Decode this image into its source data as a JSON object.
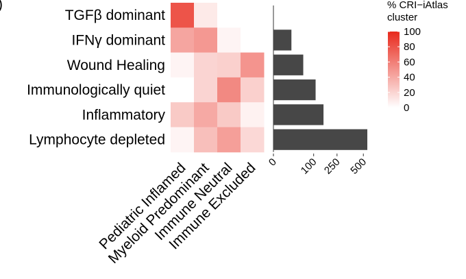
{
  "chart_data": [
    {
      "type": "heatmap",
      "panel_label": ")",
      "rows": [
        "TGFβ dominant",
        "IFNγ dominant",
        "Wound Healing",
        "Immunologically quiet",
        "Inflammatory",
        "Lymphocyte depleted"
      ],
      "columns": [
        "Pediatric Inflamed",
        "Myeloid Predominant",
        "Immune Neutral",
        "Immune Excluded"
      ],
      "values": [
        [
          80,
          10,
          0,
          0
        ],
        [
          42,
          48,
          5,
          0
        ],
        [
          5,
          20,
          22,
          50
        ],
        [
          0,
          20,
          55,
          22
        ],
        [
          25,
          40,
          25,
          6
        ],
        [
          5,
          30,
          45,
          18
        ]
      ],
      "color_low": "#FFFFFF",
      "color_high": "#E8291C",
      "legend": {
        "title_line1": "% CRI−iAtlas",
        "title_line2": "cluster",
        "ticks": [
          100,
          80,
          60,
          40,
          20,
          0
        ],
        "range": [
          0,
          100
        ]
      }
    },
    {
      "type": "bar",
      "orientation": "horizontal",
      "categories": [
        "TGFβ dominant",
        "IFNγ dominant",
        "Wound Healing",
        "Immunologically quiet",
        "Inflammatory",
        "Lymphocyte depleted"
      ],
      "values": [
        0,
        20,
        55,
        110,
        155,
        545
      ],
      "xscale": "sqrt",
      "xticks": [
        0,
        100,
        250,
        500
      ],
      "xlim": [
        0,
        560
      ],
      "bar_color": "#474747"
    }
  ]
}
